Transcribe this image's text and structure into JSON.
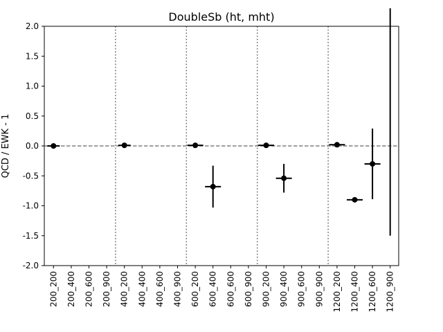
{
  "chart_data": {
    "type": "scatter",
    "title": "DoubleSb (ht, mht)",
    "xlabel": "",
    "ylabel": "QCD / EWK - 1",
    "ylim": [
      -2.0,
      2.0
    ],
    "yticks": [
      "-2.0",
      "-1.5",
      "-1.0",
      "-0.5",
      "0.0",
      "0.5",
      "1.0",
      "1.5",
      "2.0"
    ],
    "categories": [
      "200_200",
      "200_400",
      "200_600",
      "200_900",
      "400_200",
      "400_400",
      "400_600",
      "400_900",
      "600_200",
      "600_400",
      "600_600",
      "600_900",
      "900_200",
      "900_400",
      "900_600",
      "900_900",
      "1200_200",
      "1200_400",
      "1200_600",
      "1200_900"
    ],
    "reference_line": 0.0,
    "group_separators_after": [
      "200_900",
      "400_900",
      "600_900",
      "900_900"
    ],
    "grid": false,
    "legend": "none",
    "marker_color": "#000000",
    "reference_line_color": "#808080",
    "separator_color": "#808080",
    "points": [
      {
        "category": "200_200",
        "y": 0.0,
        "yerr_low": 0.0,
        "yerr_high": 0.0,
        "xerr": 0.35
      },
      {
        "category": "400_200",
        "y": 0.01,
        "yerr_low": 0.01,
        "yerr_high": 0.01,
        "xerr": 0.35
      },
      {
        "category": "600_200",
        "y": 0.01,
        "yerr_low": 0.01,
        "yerr_high": 0.01,
        "xerr": 0.45
      },
      {
        "category": "600_400",
        "y": -0.68,
        "yerr_low": 0.35,
        "yerr_high": 0.35,
        "xerr": 0.45
      },
      {
        "category": "900_200",
        "y": 0.01,
        "yerr_low": 0.01,
        "yerr_high": 0.01,
        "xerr": 0.45
      },
      {
        "category": "900_400",
        "y": -0.54,
        "yerr_low": 0.24,
        "yerr_high": 0.24,
        "xerr": 0.45
      },
      {
        "category": "1200_200",
        "y": 0.02,
        "yerr_low": 0.02,
        "yerr_high": 0.02,
        "xerr": 0.45
      },
      {
        "category": "1200_400",
        "y": -0.9,
        "yerr_low": 0.04,
        "yerr_high": 0.04,
        "xerr": 0.45
      },
      {
        "category": "1200_600",
        "y": -0.3,
        "yerr_low": 0.59,
        "yerr_high": 0.59,
        "xerr": 0.45
      },
      {
        "category": "1200_900",
        "y": 0.4,
        "yerr_low": 1.9,
        "yerr_high": 1.9,
        "xerr": 0.0,
        "marker": false
      }
    ]
  }
}
